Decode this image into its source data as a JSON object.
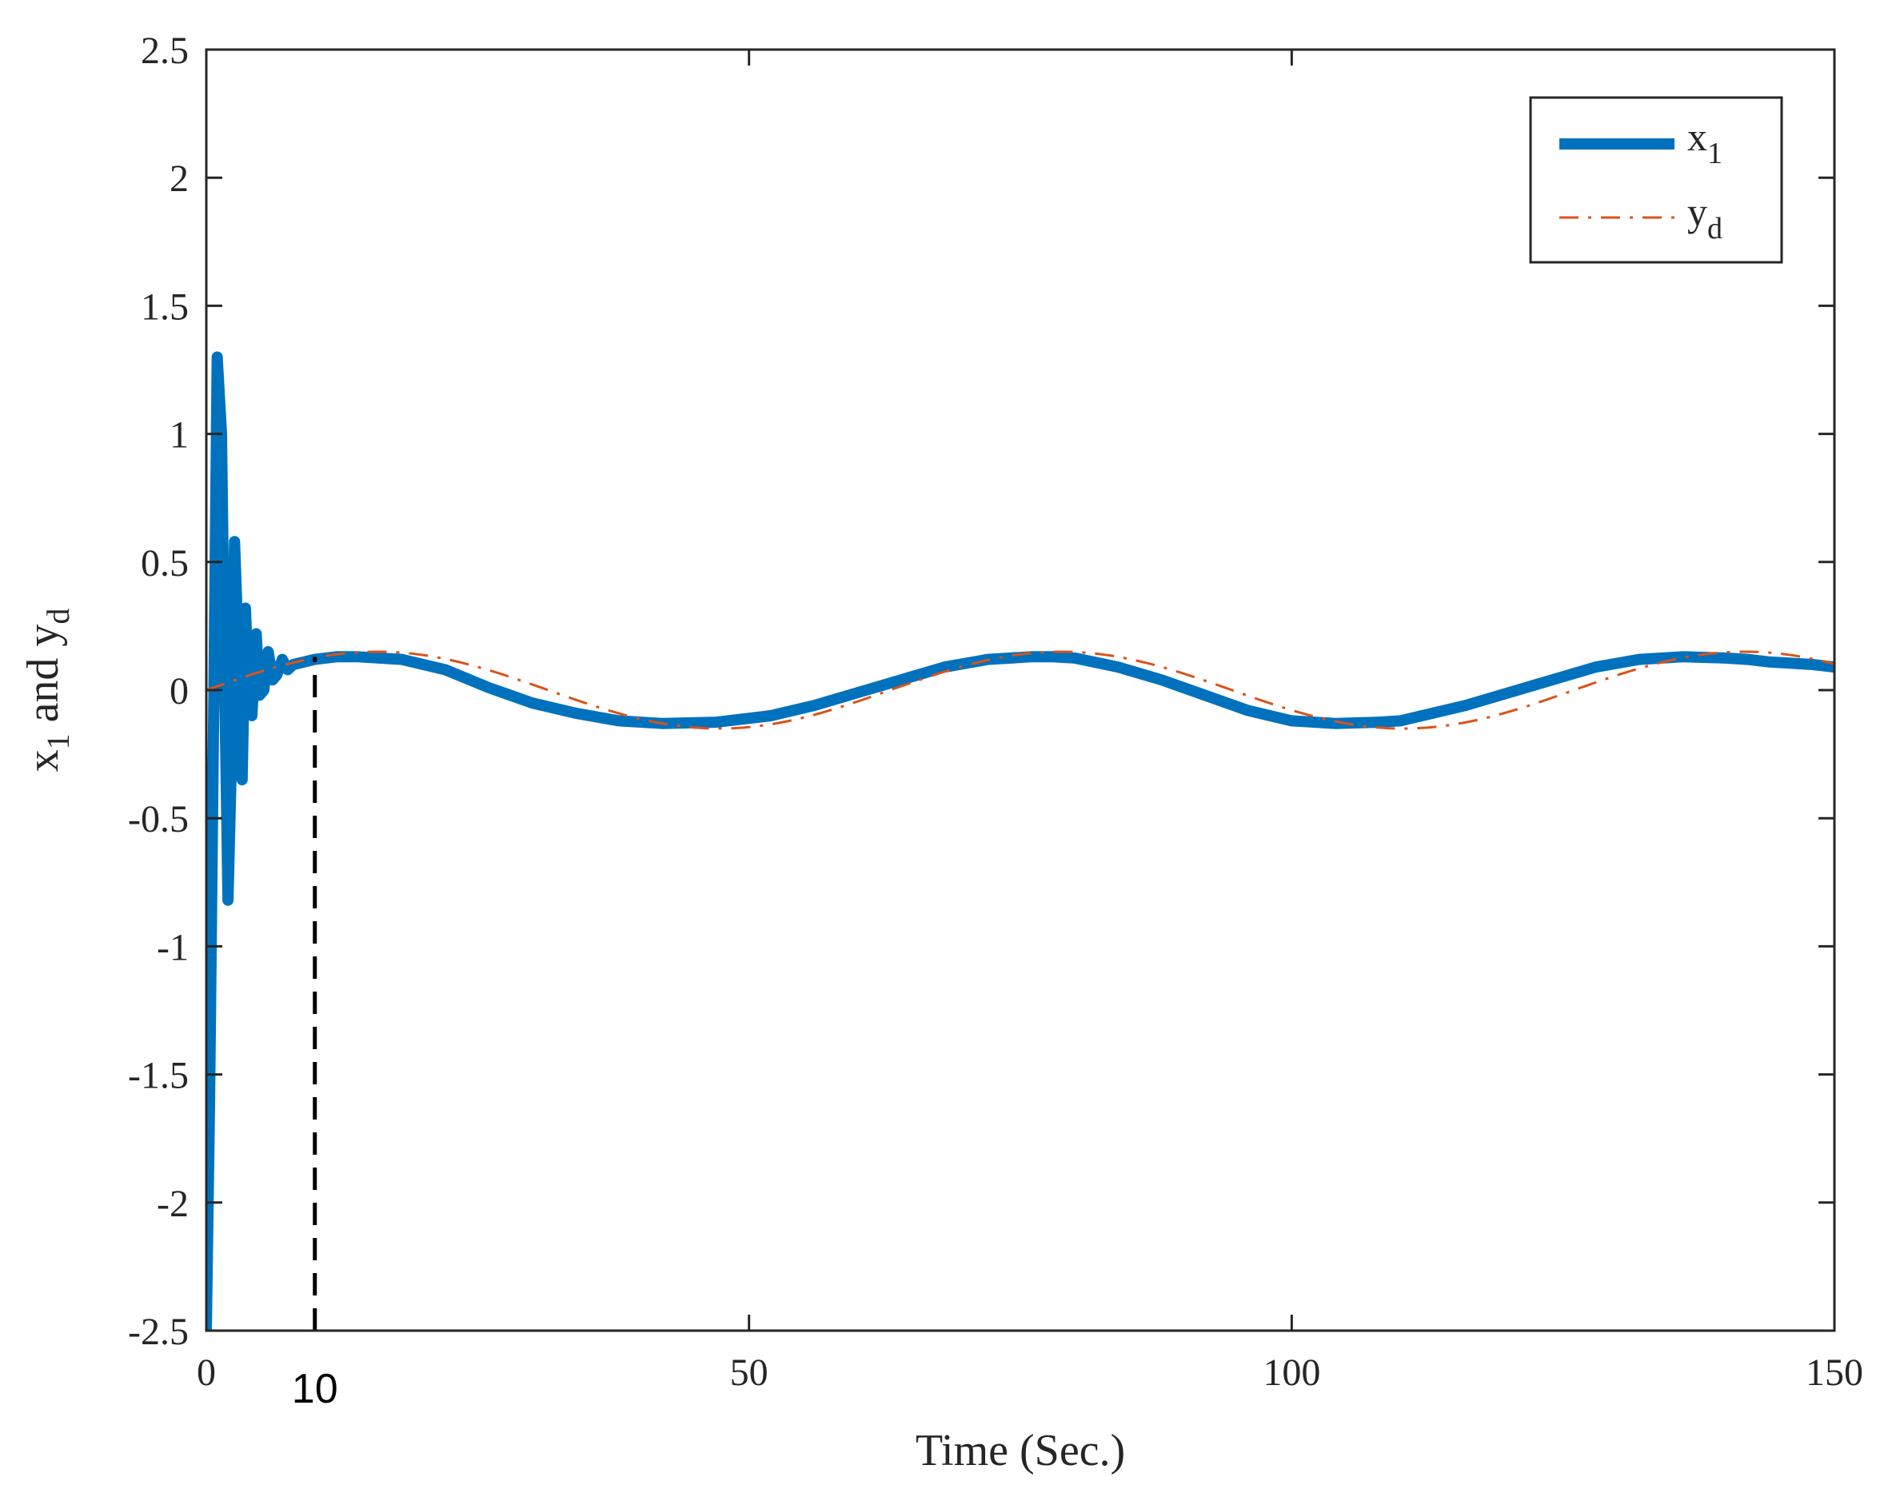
{
  "chart_data": {
    "type": "line",
    "xlabel": "Time (Sec.)",
    "ylabel": {
      "main": "x",
      "sub1": "1",
      "mid": " and y",
      "sub2": "d"
    },
    "xlim": [
      0,
      150
    ],
    "ylim": [
      -2.5,
      2.5
    ],
    "x_ticks": [
      0,
      50,
      100,
      150
    ],
    "x_tick_labels": [
      "0",
      "50",
      "100",
      "150"
    ],
    "y_ticks": [
      -2.5,
      -2,
      -1.5,
      -1,
      -0.5,
      0,
      0.5,
      1,
      1.5,
      2,
      2.5
    ],
    "y_tick_labels": [
      "-2.5",
      "-2",
      "-1.5",
      "-1",
      "-0.5",
      "0",
      "0.5",
      "1",
      "1.5",
      "2",
      "2.5"
    ],
    "grid": false,
    "legend_position": "top-right",
    "series": [
      {
        "name": "x",
        "name_sub": "1",
        "style": "solid-thick",
        "color": "#0072BD",
        "x": [
          0,
          0.3,
          0.7,
          1.0,
          1.4,
          1.7,
          2.0,
          2.3,
          2.6,
          3.0,
          3.3,
          3.6,
          3.9,
          4.2,
          4.6,
          4.9,
          5.3,
          5.7,
          6.1,
          6.5,
          7.0,
          7.5,
          8.0,
          9.0,
          10,
          12,
          14,
          18,
          22,
          26,
          30,
          34,
          38,
          42,
          47,
          52,
          56,
          60,
          64,
          68,
          72,
          76,
          78,
          80,
          84,
          88,
          92,
          96,
          100,
          104,
          108,
          110,
          112,
          116,
          120,
          124,
          128,
          132,
          136,
          140,
          142,
          144,
          148,
          150
        ],
        "y": [
          -2.5,
          -1.6,
          0.0,
          1.3,
          1.0,
          0.0,
          -0.82,
          -0.3,
          0.58,
          0.1,
          -0.35,
          0.32,
          0.0,
          -0.1,
          0.22,
          -0.02,
          0.0,
          0.15,
          0.04,
          0.06,
          0.12,
          0.08,
          0.1,
          0.11,
          0.12,
          0.13,
          0.13,
          0.12,
          0.08,
          0.01,
          -0.05,
          -0.09,
          -0.12,
          -0.13,
          -0.125,
          -0.1,
          -0.06,
          -0.01,
          0.04,
          0.09,
          0.12,
          0.13,
          0.13,
          0.125,
          0.09,
          0.04,
          -0.02,
          -0.08,
          -0.12,
          -0.13,
          -0.125,
          -0.12,
          -0.1,
          -0.06,
          -0.01,
          0.04,
          0.09,
          0.12,
          0.13,
          0.125,
          0.12,
          0.11,
          0.1,
          0.09
        ]
      },
      {
        "name": "y",
        "name_sub": "d",
        "style": "dash-dot",
        "color": "#D95319",
        "amplitude": 0.15,
        "period": 63,
        "x_start": 0,
        "x_end": 150
      }
    ],
    "annotations": [
      {
        "type": "vertical-dashed-line",
        "x": 10,
        "y_from": -2.5,
        "y_to": 0.13,
        "color": "#000000",
        "label": "10"
      }
    ]
  }
}
